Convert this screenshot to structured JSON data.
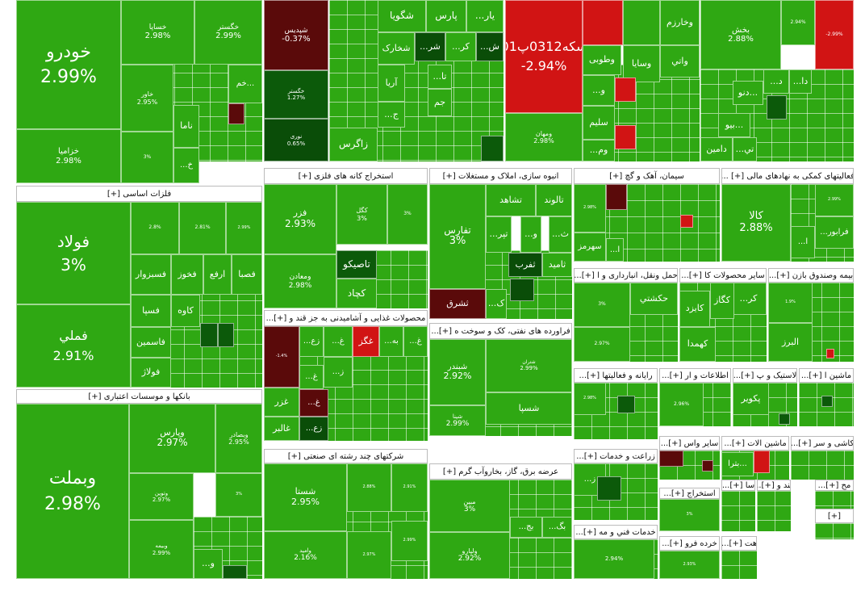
{
  "colors": {
    "green": "#2fa813",
    "light_green": "#3cb51c",
    "dark_green": "#0c5a0a",
    "deep_green": "#0a4d08",
    "red": "#d11414",
    "dark_red": "#5a0a0a",
    "header_bg": "#ffffff"
  },
  "chart_data": {
    "type": "treemap",
    "title": "",
    "value_unit": "%",
    "sectors": [
      {
        "name": "",
        "items": [
          {
            "name": "خودرو",
            "change": 2.99
          },
          {
            "name": "خزامیا",
            "change": 2.98
          },
          {
            "name": "خساپا",
            "change": 2.98
          },
          {
            "name": "خگستر",
            "change": 2.99
          },
          {
            "name": "خاور",
            "change": 2.95
          },
          {
            "name": "ناما",
            "change": null
          },
          {
            "name": "خم...",
            "change": null
          },
          {
            "name": "...خ",
            "change": null
          },
          {
            "name": "",
            "change": 3
          }
        ]
      },
      {
        "name": "",
        "items": [
          {
            "name": "شپدیس",
            "change": -0.37
          },
          {
            "name": "خگستر",
            "change": 1.27
          },
          {
            "name": "نوری",
            "change": 0.65
          },
          {
            "name": "شگویا",
            "change": null
          },
          {
            "name": "پارس",
            "change": null
          },
          {
            "name": "...یار",
            "change": null
          },
          {
            "name": "شخارک",
            "change": null
          },
          {
            "name": "...شر",
            "change": null
          },
          {
            "name": "...کر",
            "change": null
          },
          {
            "name": "...ش",
            "change": null
          },
          {
            "name": "آریا",
            "change": null
          },
          {
            "name": "...تا",
            "change": null
          },
          {
            "name": "جم",
            "change": null
          },
          {
            "name": "...ج",
            "change": null
          },
          {
            "name": "زاگرس",
            "change": null
          }
        ]
      },
      {
        "name": "",
        "items": [
          {
            "name": "سکه0312پ01",
            "change": -2.94
          },
          {
            "name": "وخارزم",
            "change": null
          },
          {
            "name": "وسایا",
            "change": null
          },
          {
            "name": "وطوبی",
            "change": null
          },
          {
            "name": "واتي",
            "change": null
          },
          {
            "name": "...و",
            "change": null
          },
          {
            "name": "سلیم",
            "change": null
          },
          {
            "name": "...وم",
            "change": null
          },
          {
            "name": "ومهان",
            "change": 2.98
          }
        ]
      },
      {
        "name": "",
        "items": [
          {
            "name": "بخش",
            "change": 2.88
          },
          {
            "name": "",
            "change": 2.94
          },
          {
            "name": "",
            "change": -2.99
          },
          {
            "name": "دنو...",
            "change": null
          },
          {
            "name": "بیو...",
            "change": null
          },
          {
            "name": "دامین",
            "change": null
          },
          {
            "name": "...تي",
            "change": null
          },
          {
            "name": "...د",
            "change": null
          },
          {
            "name": "...دا",
            "change": null
          }
        ]
      },
      {
        "name": "فلزات اساسی [+]",
        "items": [
          {
            "name": "فولاد",
            "change": 3
          },
          {
            "name": "فملي",
            "change": 2.91
          },
          {
            "name": "فسبزوار",
            "change": null
          },
          {
            "name": "فخوز",
            "change": null
          },
          {
            "name": "ارفع",
            "change": null
          },
          {
            "name": "فصبا",
            "change": null
          },
          {
            "name": "فسپا",
            "change": null
          },
          {
            "name": "کاوه",
            "change": null
          },
          {
            "name": "فاسمین",
            "change": null
          },
          {
            "name": "فولاژ",
            "change": null
          },
          {
            "name": "",
            "change": 2.8
          },
          {
            "name": "",
            "change": 2.81
          },
          {
            "name": "",
            "change": 2.99
          }
        ]
      },
      {
        "name": "بانکها و موسسات اعتباری [+]",
        "items": [
          {
            "name": "وبملت",
            "change": 2.98
          },
          {
            "name": "وپارس",
            "change": 2.97
          },
          {
            "name": "وبصادر",
            "change": 2.95
          },
          {
            "name": "وتوین",
            "change": 2.97
          },
          {
            "name": "وبیمه",
            "change": 2.99
          },
          {
            "name": "...و",
            "change": null
          },
          {
            "name": "",
            "change": 3
          }
        ]
      },
      {
        "name": "استخراج کانه های فلزی [+]",
        "items": [
          {
            "name": "فزر",
            "change": 2.93
          },
          {
            "name": "کگل",
            "change": 3
          },
          {
            "name": "",
            "change": 3
          },
          {
            "name": "ومعادن",
            "change": 2.98
          },
          {
            "name": "تاصیکو",
            "change": null
          },
          {
            "name": "کچاد",
            "change": null
          }
        ]
      },
      {
        "name": "انبوه سازی، املاک و مستغلات [+]",
        "items": [
          {
            "name": "تفارس",
            "change": 3
          },
          {
            "name": "تشاهد",
            "change": null
          },
          {
            "name": "تالوند",
            "change": null
          },
          {
            "name": "...تپر",
            "change": null
          },
          {
            "name": "...و",
            "change": null
          },
          {
            "name": "...ث",
            "change": null
          },
          {
            "name": "ثفرب",
            "change": null
          },
          {
            "name": "ثامید",
            "change": null
          },
          {
            "name": "ثشرق",
            "change": null
          },
          {
            "name": "...ک",
            "change": null
          }
        ]
      },
      {
        "name": "سیمان، آهک و گچ [+]",
        "items": [
          {
            "name": "سهرمز",
            "change": null
          },
          {
            "name": "",
            "change": 2.98
          },
          {
            "name": "...ا",
            "change": null
          }
        ]
      },
      {
        "name": "فعالیتهای کمکی به نهادهای مالی [+] ...",
        "items": [
          {
            "name": "کالا",
            "change": 2.88
          },
          {
            "name": "...فرابور",
            "change": null
          },
          {
            "name": "...ا",
            "change": null
          },
          {
            "name": "",
            "change": 2.99
          }
        ]
      },
      {
        "name": "حمل ونقل، انبارداری و ا [+]...",
        "items": [
          {
            "name": "حکشتي",
            "change": null
          },
          {
            "name": "",
            "change": 3
          },
          {
            "name": "",
            "change": 2.97
          }
        ]
      },
      {
        "name": "سایر محصولات کا [+]...",
        "items": [
          {
            "name": "کگاز",
            "change": null
          },
          {
            "name": "...کر",
            "change": null
          },
          {
            "name": "کایزد",
            "change": null
          },
          {
            "name": "کهمدا",
            "change": null
          }
        ]
      },
      {
        "name": "بیمه وصندوق بازن [+]...",
        "items": [
          {
            "name": "البرز",
            "change": null
          },
          {
            "name": "",
            "change": 1.9
          }
        ]
      },
      {
        "name": "محصولات غذایی و آشامیدنی به جز قند و [+]...",
        "items": [
          {
            "name": "غزر",
            "change": null
          },
          {
            "name": "غالبر",
            "change": null
          },
          {
            "name": "غگز",
            "change": null
          },
          {
            "name": "...به",
            "change": null
          },
          {
            "name": "...غ",
            "change": null
          },
          {
            "name": "...زع",
            "change": null
          },
          {
            "name": "...ز",
            "change": null
          },
          {
            "name": "",
            "change": -1.4
          }
        ]
      },
      {
        "name": "فراورده های نفتی، کک و سوخت ه [+]...",
        "items": [
          {
            "name": "شبندر",
            "change": 2.92
          },
          {
            "name": "شتران",
            "change": 2.99
          },
          {
            "name": "شسپا",
            "change": null
          },
          {
            "name": "شپنا",
            "change": 2.99
          }
        ]
      },
      {
        "name": "شرکتهای چند رشته ای صنعتی [+]",
        "items": [
          {
            "name": "شستا",
            "change": 2.95
          },
          {
            "name": "وامید",
            "change": 2.16
          },
          {
            "name": "",
            "change": 2.88
          },
          {
            "name": "",
            "change": 2.91
          },
          {
            "name": "",
            "change": 2.97
          },
          {
            "name": "",
            "change": 2.99
          }
        ]
      },
      {
        "name": "عرضه برق، گاز، بخاروآب گرم [+]",
        "items": [
          {
            "name": "مبین",
            "change": 3
          },
          {
            "name": "ولپارو",
            "change": 2.92
          },
          {
            "name": "...بگ",
            "change": null
          },
          {
            "name": "...بج",
            "change": null
          }
        ]
      },
      {
        "name": "رایانه و فعالیتها [+]...",
        "items": [
          {
            "name": "",
            "change": 2.98
          }
        ]
      },
      {
        "name": "اطلاعات و ار [+]...",
        "items": [
          {
            "name": "",
            "change": 2.96
          }
        ]
      },
      {
        "name": "لاستیک و پ [+]...",
        "items": [
          {
            "name": "پکویر",
            "change": null
          }
        ]
      },
      {
        "name": "ماشین ا [+]...",
        "items": []
      },
      {
        "name": "زراعت و خدمات [+]...",
        "items": [
          {
            "name": "...ز",
            "change": null
          }
        ]
      },
      {
        "name": "سایر واس [+]...",
        "items": []
      },
      {
        "name": "ماشین الات [+]...",
        "items": [
          {
            "name": "بترا...",
            "change": null
          }
        ]
      },
      {
        "name": "کاشی و سر [+]...",
        "items": []
      },
      {
        "name": "استخراج [+]...",
        "items": [
          {
            "name": "",
            "change": 3
          }
        ]
      },
      {
        "name": "خدمات فني و مه [+]...",
        "items": [
          {
            "name": "",
            "change": 2.94
          }
        ]
      },
      {
        "name": "خرده فرو [+]...",
        "items": [
          {
            "name": "",
            "change": 2.93
          }
        ]
      },
      {
        "name": "سا [+]...",
        "items": []
      },
      {
        "name": "قند و [+]...",
        "items": []
      },
      {
        "name": "مح [+]...",
        "items": []
      },
      {
        "name": "هت [+]...",
        "items": []
      },
      {
        "name": "[+]",
        "items": []
      }
    ]
  }
}
